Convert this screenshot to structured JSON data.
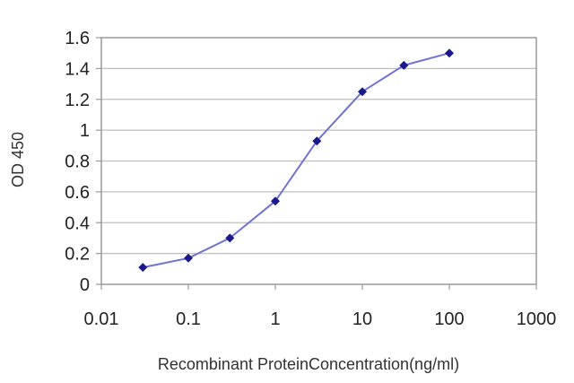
{
  "chart_data": {
    "type": "line",
    "title": "",
    "xlabel": "Recombinant ProteinConcentration(ng/ml)",
    "ylabel": "OD 450",
    "x_scale": "log",
    "xlim": [
      0.01,
      1000
    ],
    "ylim": [
      0,
      1.6
    ],
    "x_ticks": [
      "0.01",
      "0.1",
      "1",
      "10",
      "100",
      "1000"
    ],
    "y_ticks": [
      "0",
      "0.2",
      "0.4",
      "0.6",
      "0.8",
      "1",
      "1.2",
      "1.4",
      "1.6"
    ],
    "grid": "horizontal",
    "legend": "none",
    "series": [
      {
        "x": [
          0.03,
          0.1,
          0.3,
          1,
          3,
          10,
          30,
          100
        ],
        "y": [
          0.11,
          0.17,
          0.3,
          0.54,
          0.93,
          1.25,
          1.42,
          1.5
        ]
      }
    ],
    "colors": {
      "line": "#6f73d6",
      "marker": "#1a1a8c",
      "grid": "#bfbfbf",
      "frame": "#9a9a9a"
    }
  }
}
